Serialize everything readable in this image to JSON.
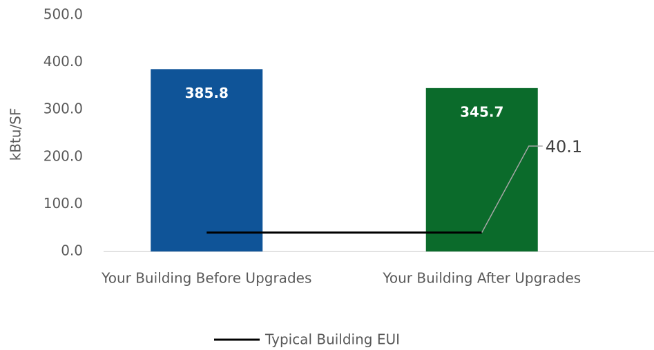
{
  "chart_data": {
    "type": "bar",
    "y_label": "kBtu/SF",
    "categories": [
      "Your Building Before Upgrades",
      "Your Building After Upgrades"
    ],
    "series": [
      {
        "type": "bar",
        "colors": [
          "#0f5498",
          "#0b6b2b"
        ],
        "values": [
          385.8,
          345.7
        ]
      },
      {
        "type": "line",
        "name": "Typical Building EUI",
        "color": "#000000",
        "values": [
          40.1,
          40.1
        ]
      }
    ],
    "ylim": [
      0,
      500
    ],
    "yticks": [
      {
        "value": 0,
        "label": "0.0"
      },
      {
        "value": 100,
        "label": "100.0"
      },
      {
        "value": 200,
        "label": "200.0"
      },
      {
        "value": 300,
        "label": "300.0"
      },
      {
        "value": 400,
        "label": "400.0"
      },
      {
        "value": 500,
        "label": "500.0"
      }
    ],
    "grid": false,
    "legend": "bottom"
  }
}
